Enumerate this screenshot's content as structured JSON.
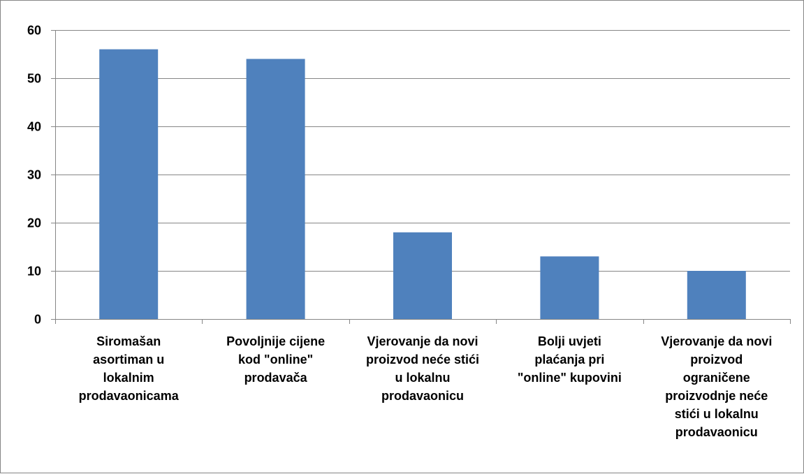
{
  "chart_data": {
    "type": "bar",
    "title": "",
    "xlabel": "",
    "ylabel": "",
    "ylim": [
      0,
      60
    ],
    "yticks": [
      "0",
      "10",
      "20",
      "30",
      "40",
      "50",
      "60"
    ],
    "grid": true,
    "legend": "none",
    "categories": [
      "Siromašan\nasortiman u\nlokalnim\nprodavaonicama",
      "Povoljnije cijene\nkod \"online\"\nprodavača",
      "Vjerovanje da novi\nproizvod neće stići\nu lokalnu\nprodavaonicu",
      "Bolji uvjeti\nplaćanja pri\n\"online\" kupovini",
      "Vjerovanje da novi\nproizvod\nograničene\nproizvodnje neće\nstići u lokalnu\nprodavaonicu"
    ],
    "values": [
      56,
      54,
      18,
      13,
      10
    ],
    "colors": {
      "bar": "#4F81BD",
      "grid": "#868686",
      "axis": "#868686"
    }
  }
}
